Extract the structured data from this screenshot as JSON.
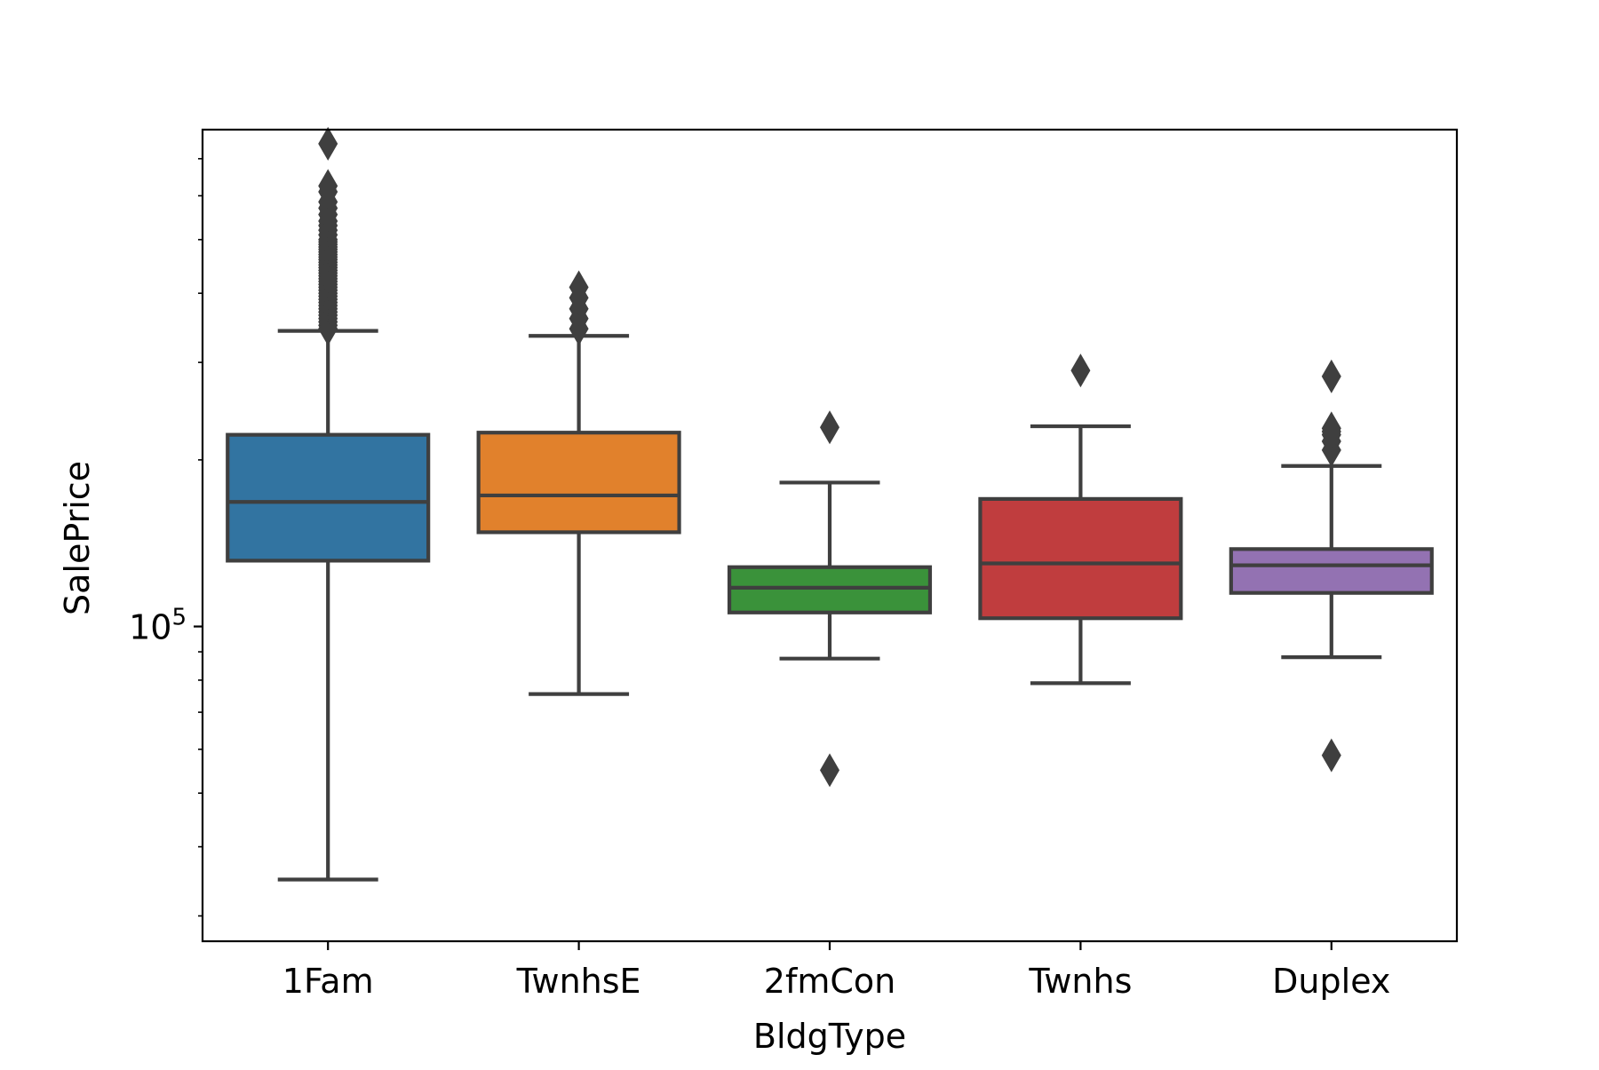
{
  "chart_data": {
    "type": "box",
    "title": "",
    "xlabel": "BldgType",
    "ylabel": "SalePrice",
    "yscale": "log",
    "ylim": [
      27000,
      790000
    ],
    "y_tick_labels": [
      {
        "base": "10",
        "exp": "5",
        "value": 100000
      }
    ],
    "grid": false,
    "categories": [
      "1Fam",
      "TwnhsE",
      "2fmCon",
      "Twnhs",
      "Duplex"
    ],
    "colors": [
      "#3274a1",
      "#e1812c",
      "#3a923a",
      "#c03d3e",
      "#9372b2"
    ],
    "edge_color": "#3f3f3f",
    "boxes": [
      {
        "category": "1Fam",
        "whislo": 34900,
        "q1": 131500,
        "med": 167900,
        "q3": 222000,
        "whishi": 342000,
        "fliers": [
          345000,
          350000,
          355000,
          360000,
          365000,
          370000,
          375000,
          380000,
          385000,
          390000,
          395000,
          400000,
          405000,
          410000,
          415000,
          420000,
          425000,
          430000,
          435000,
          440000,
          445000,
          450000,
          455000,
          460000,
          465000,
          470000,
          475000,
          480000,
          485000,
          490000,
          495000,
          500000,
          510000,
          520000,
          530000,
          540000,
          555000,
          570000,
          585000,
          610000,
          625000,
          745000
        ]
      },
      {
        "category": "TwnhsE",
        "whislo": 75500,
        "q1": 148000,
        "med": 172500,
        "q3": 224000,
        "whishi": 335000,
        "fliers": [
          345000,
          360000,
          375000,
          392500,
          410000
        ]
      },
      {
        "category": "2fmCon",
        "whislo": 87500,
        "q1": 106000,
        "med": 117500,
        "q3": 128000,
        "whishi": 182000,
        "fliers": [
          55000,
          228950
        ]
      },
      {
        "category": "Twnhs",
        "whislo": 79000,
        "q1": 103500,
        "med": 130000,
        "q3": 170000,
        "whishi": 230000,
        "fliers": [
          290000
        ]
      },
      {
        "category": "Duplex",
        "whislo": 88000,
        "q1": 115000,
        "med": 129000,
        "q3": 138000,
        "whishi": 195000,
        "fliers": [
          58500,
          208300,
          216000,
          222000,
          225000,
          228000,
          283000
        ]
      }
    ]
  }
}
